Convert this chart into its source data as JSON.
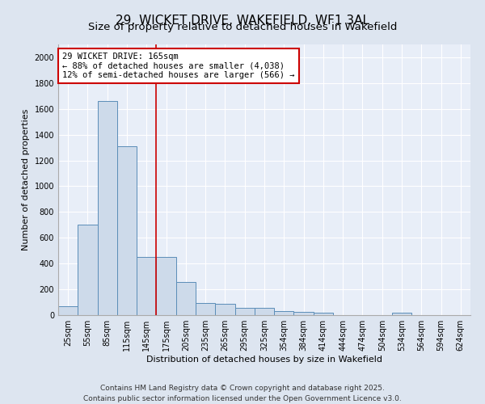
{
  "title": "29, WICKET DRIVE, WAKEFIELD, WF1 3AL",
  "subtitle": "Size of property relative to detached houses in Wakefield",
  "xlabel": "Distribution of detached houses by size in Wakefield",
  "ylabel": "Number of detached properties",
  "categories": [
    "25sqm",
    "55sqm",
    "85sqm",
    "115sqm",
    "145sqm",
    "175sqm",
    "205sqm",
    "235sqm",
    "265sqm",
    "295sqm",
    "325sqm",
    "354sqm",
    "384sqm",
    "414sqm",
    "444sqm",
    "474sqm",
    "504sqm",
    "534sqm",
    "564sqm",
    "594sqm",
    "624sqm"
  ],
  "values": [
    70,
    700,
    1660,
    1310,
    450,
    450,
    255,
    95,
    90,
    55,
    55,
    30,
    25,
    20,
    0,
    0,
    0,
    20,
    0,
    0,
    0
  ],
  "bar_color": "#cddaea",
  "bar_edge_color": "#5b8db8",
  "red_line_index": 5,
  "annotation_line1": "29 WICKET DRIVE: 165sqm",
  "annotation_line2": "← 88% of detached houses are smaller (4,038)",
  "annotation_line3": "12% of semi-detached houses are larger (566) →",
  "annotation_box_color": "#ffffff",
  "annotation_box_edge_color": "#cc0000",
  "footer_line1": "Contains HM Land Registry data © Crown copyright and database right 2025.",
  "footer_line2": "Contains public sector information licensed under the Open Government Licence v3.0.",
  "background_color": "#dde5f0",
  "plot_background_color": "#e8eef8",
  "ylim": [
    0,
    2100
  ],
  "yticks": [
    0,
    200,
    400,
    600,
    800,
    1000,
    1200,
    1400,
    1600,
    1800,
    2000
  ],
  "grid_color": "#ffffff",
  "title_fontsize": 11,
  "subtitle_fontsize": 9.5,
  "axis_label_fontsize": 8,
  "tick_fontsize": 7,
  "annotation_fontsize": 7.5,
  "footer_fontsize": 6.5
}
